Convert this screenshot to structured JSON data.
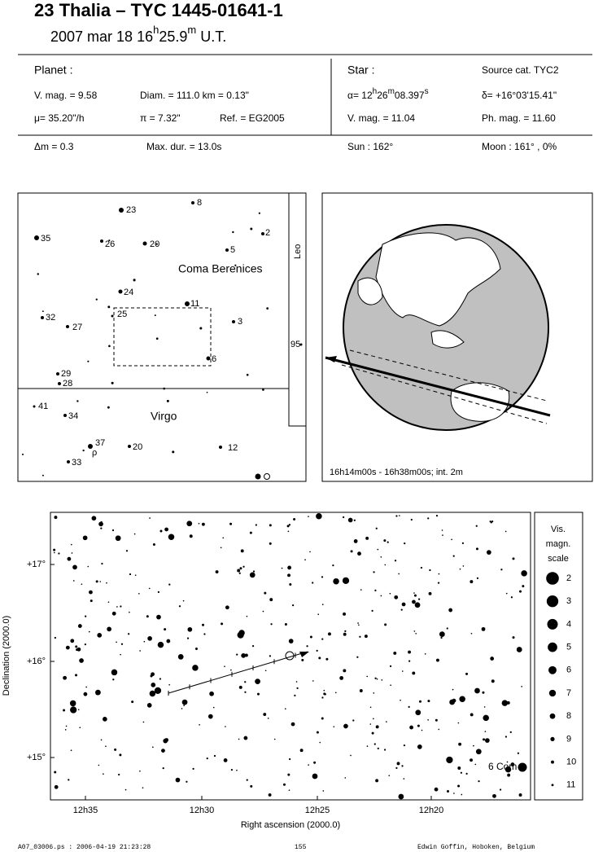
{
  "header": {
    "title": "23 Thalia  –  TYC 1445-01641-1",
    "date": [
      "2007 mar 18  16",
      "h",
      "25.9",
      "m",
      " U.T."
    ]
  },
  "planet": {
    "label": "Planet :",
    "vmag": "V. mag. =  9.58",
    "diam": "Diam. = 111.0 km = 0.13\"",
    "mu": "μ=  35.20\"/h",
    "pi": "π =  7.32\"",
    "ref": "Ref. = EG2005"
  },
  "star": {
    "label": "Star :",
    "source": "Source cat.  TYC2",
    "alpha": [
      "α= 12",
      "h",
      "26",
      "m",
      "08.397",
      "s"
    ],
    "delta": "δ= +16°03'15.41\"",
    "vmag": "V. mag. = 11.04",
    "phmag": "Ph. mag. = 11.60"
  },
  "summary": {
    "dm": "Δm = 0.3",
    "maxdur": "Max. dur. = 13.0s",
    "sun": "Sun : 162°",
    "moon": "Moon : 161° ,  0%"
  },
  "finder": {
    "labels": [
      "8",
      "23",
      "35",
      "2",
      "26",
      "20",
      "5",
      "Coma Berenices",
      "Leo",
      "24",
      "11",
      "32",
      "25",
      "3",
      "27",
      "95",
      "6",
      "29",
      "28",
      "41",
      "34",
      "Virgo",
      "37",
      "ρ",
      "20",
      "12",
      "33"
    ]
  },
  "globe": {
    "caption": "16h14m00s - 16h38m00s; int.  2m"
  },
  "sky": {
    "ylabel": "Declination (2000.0)",
    "xlabel": "Right ascension (2000.0)",
    "yticks": [
      "+17°",
      "+16°",
      "+15°"
    ],
    "xticks": [
      "12h35",
      "12h30",
      "12h25",
      "12h20"
    ],
    "star_label": "6 Com",
    "legend": {
      "title": [
        "Vis.",
        "magn.",
        "scale"
      ],
      "items": [
        "2",
        "3",
        "4",
        "5",
        "6",
        "7",
        "8",
        "9",
        "10",
        "11"
      ]
    }
  },
  "footer": {
    "file": "A07_03006.ps : 2006-04-19 21:23:28",
    "page": "155",
    "author": "Edwin Goffin, Hoboken, Belgium"
  }
}
